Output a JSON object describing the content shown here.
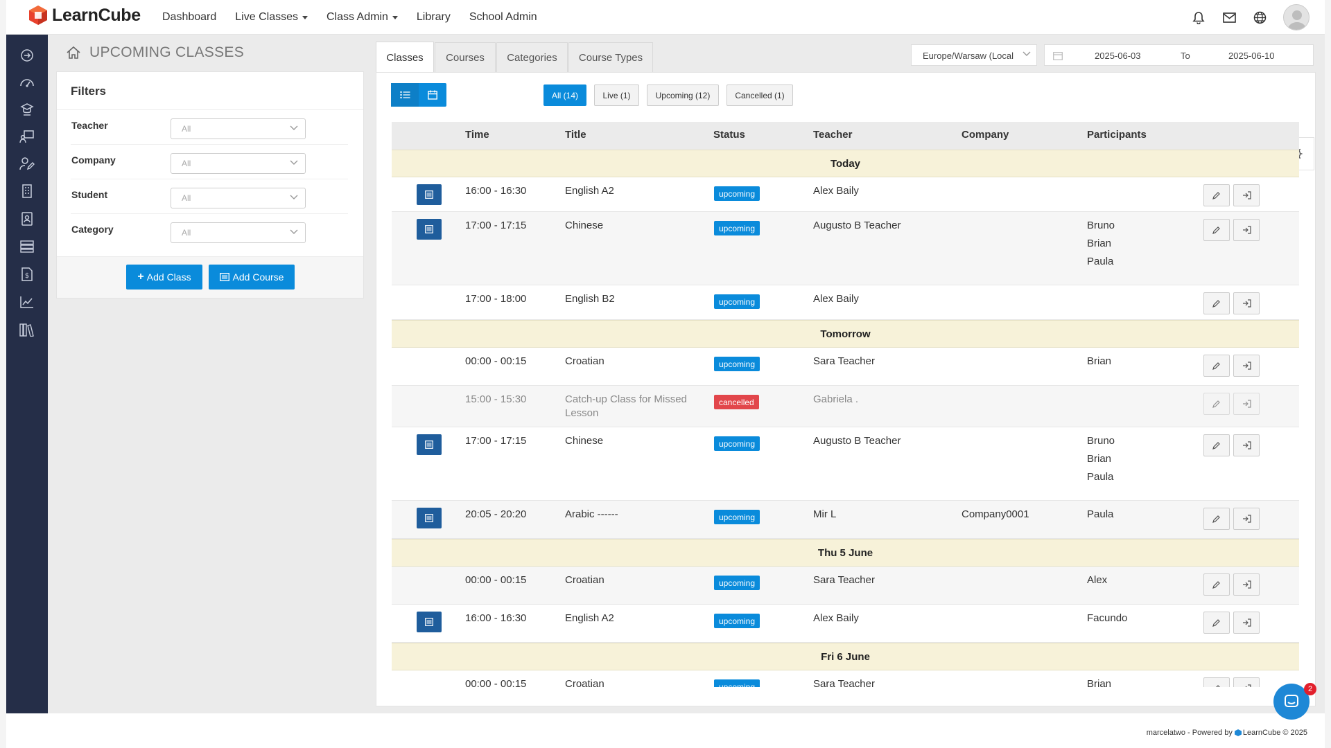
{
  "app": {
    "logo_text": "LearnCube"
  },
  "nav": {
    "items": [
      {
        "label": "Dashboard",
        "dropdown": false
      },
      {
        "label": "Live Classes",
        "dropdown": true
      },
      {
        "label": "Class Admin",
        "dropdown": true
      },
      {
        "label": "Library",
        "dropdown": false
      },
      {
        "label": "School Admin",
        "dropdown": false
      }
    ]
  },
  "page": {
    "title": "UPCOMING CLASSES"
  },
  "filters": {
    "title": "Filters",
    "teacher": {
      "label": "Teacher",
      "value": "All"
    },
    "company": {
      "label": "Company",
      "value": "All"
    },
    "student": {
      "label": "Student",
      "value": "All"
    },
    "category": {
      "label": "Category",
      "value": "All"
    },
    "add_class": "Add Class",
    "add_course": "Add Course"
  },
  "tabs": [
    "Classes",
    "Courses",
    "Categories",
    "Course Types"
  ],
  "timezone": "Europe/Warsaw (Local",
  "date_range": {
    "from": "2025-06-03",
    "to_label": "To",
    "to": "2025-06-10"
  },
  "status_filters": {
    "all": "All (14)",
    "live": "Live (1)",
    "upcoming": "Upcoming (12)",
    "cancelled": "Cancelled (1)"
  },
  "table": {
    "headers": {
      "time": "Time",
      "title": "Title",
      "status": "Status",
      "teacher": "Teacher",
      "company": "Company",
      "participants": "Participants"
    },
    "groups": [
      "Today",
      "Tomorrow",
      "Thu 5 June",
      "Fri 6 June"
    ],
    "rows": [
      {
        "time": "16:00 - 16:30",
        "title": "English A2",
        "status": "upcoming",
        "teacher": "Alex Baily",
        "company": "",
        "p1": "",
        "p2": "",
        "p3": ""
      },
      {
        "time": "17:00 - 17:15",
        "title": "Chinese",
        "status": "upcoming",
        "teacher": "Augusto B Teacher",
        "company": "",
        "p1": "Bruno",
        "p2": "Brian",
        "p3": "Paula"
      },
      {
        "time": "17:00 - 18:00",
        "title": "English B2",
        "status": "upcoming",
        "teacher": "Alex Baily",
        "company": "",
        "p1": "",
        "p2": "",
        "p3": ""
      },
      {
        "time": "00:00 - 00:15",
        "title": "Croatian",
        "status": "upcoming",
        "teacher": "Sara Teacher",
        "company": "",
        "p1": "Brian",
        "p2": "",
        "p3": ""
      },
      {
        "time": "15:00 - 15:30",
        "title": "Catch-up Class for Missed",
        "title2": "Lesson",
        "status": "cancelled",
        "teacher": "Gabriela .",
        "company": "",
        "p1": "",
        "p2": "",
        "p3": ""
      },
      {
        "time": "17:00 - 17:15",
        "title": "Chinese",
        "status": "upcoming",
        "teacher": "Augusto B Teacher",
        "company": "",
        "p1": "Bruno",
        "p2": "Brian",
        "p3": "Paula"
      },
      {
        "time": "20:05 - 20:20",
        "title": "Arabic ------",
        "status": "upcoming",
        "teacher": "Mir L",
        "company": "Company0001",
        "p1": "Paula",
        "p2": "",
        "p3": ""
      },
      {
        "time": "00:00 - 00:15",
        "title": "Croatian",
        "status": "upcoming",
        "teacher": "Sara Teacher",
        "company": "",
        "p1": "Alex",
        "p2": "",
        "p3": ""
      },
      {
        "time": "16:00 - 16:30",
        "title": "English A2",
        "status": "upcoming",
        "teacher": "Alex Baily",
        "company": "",
        "p1": "Facundo",
        "p2": "",
        "p3": ""
      },
      {
        "time": "00:00 - 00:15",
        "title": "Croatian",
        "status": "upcoming",
        "teacher": "Sara Teacher",
        "company": "",
        "p1": "Brian",
        "p2": "",
        "p3": ""
      }
    ]
  },
  "footer": {
    "user": "marcelatwo",
    "powered": " - Powered by ",
    "brand": "LearnCube © 2025"
  },
  "chat": {
    "unread": "2"
  },
  "colors": {
    "accent": "#0a8bdb",
    "sidebar": "#252e48",
    "cancelled": "#e2464b",
    "group_bg": "#f7f2d9"
  }
}
